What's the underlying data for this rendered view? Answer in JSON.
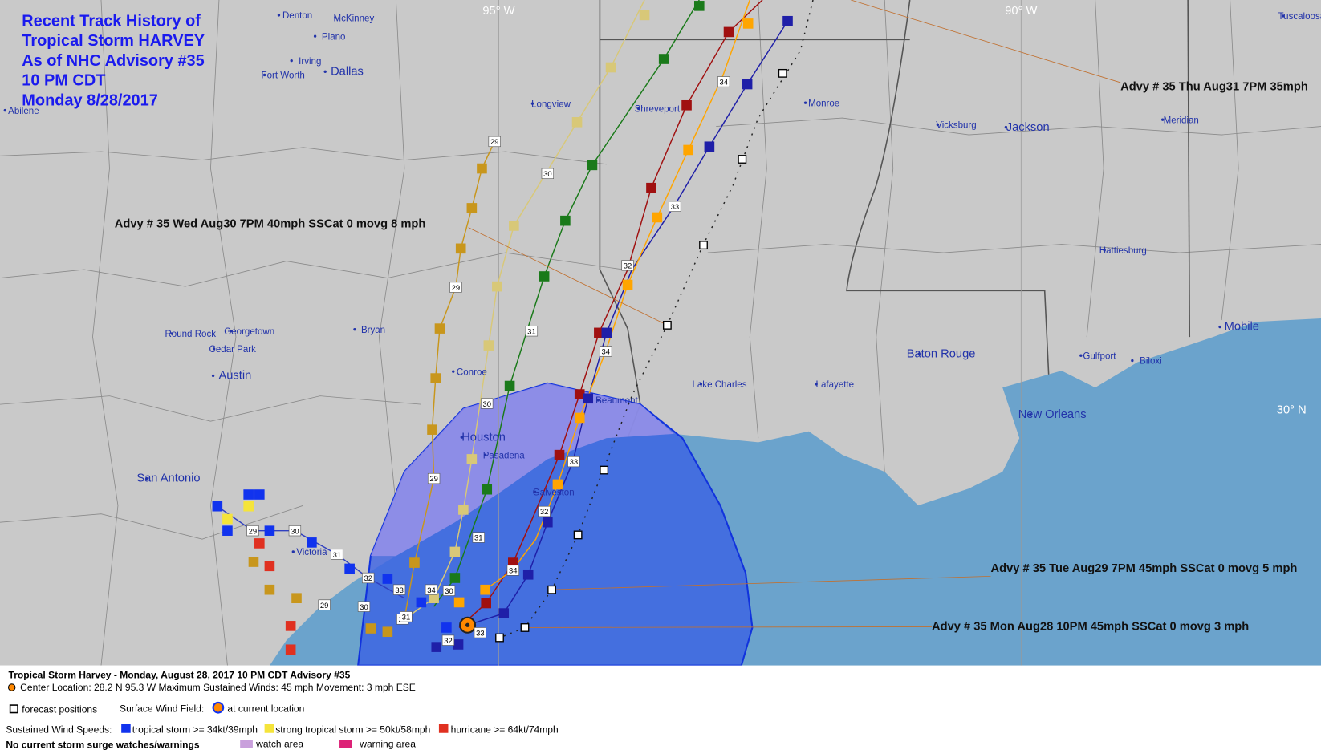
{
  "title": {
    "lines": [
      "Recent Track History of",
      "Tropical Storm HARVEY",
      "As of NHC Advisory #35",
      "10 PM CDT",
      "Monday 8/28/2017"
    ]
  },
  "grid_labels": [
    "95° W",
    "90° W",
    "30° N"
  ],
  "cities": [
    "Denton",
    "McKinney",
    "Plano",
    "Irving",
    "Fort Worth",
    "Dallas",
    "Abilene",
    "Longview",
    "Shreveport",
    "Monroe",
    "Vicksburg",
    "Jackson",
    "Meridian",
    "Tuscaloosa",
    "Bryan",
    "Round Rock",
    "Georgetown",
    "Cedar Park",
    "Austin",
    "Conroe",
    "Houston",
    "Pasadena",
    "Galveston",
    "San Antonio",
    "Victoria",
    "Beaumont",
    "Lake Charles",
    "Lafayette",
    "Baton Rouge",
    "Hattiesburg",
    "Gulfport",
    "Biloxi",
    "Mobile",
    "New Orleans"
  ],
  "advisories": [
    "Advy # 35 Thu Aug31 7PM  35mph",
    "Advy # 35 Wed Aug30 7PM  40mph SSCat 0 movg 8 mph",
    "Advy # 35 Tue Aug29 7PM  45mph SSCat 0 movg 5 mph",
    "Advy # 35 Mon Aug28 10PM  45mph SSCat 0 movg 3 mph"
  ],
  "track_labels": [
    "29",
    "29",
    "29",
    "29",
    "29",
    "29",
    "30",
    "30",
    "30",
    "30",
    "30",
    "31",
    "31",
    "31",
    "31",
    "32",
    "32",
    "32",
    "32",
    "33",
    "33",
    "33",
    "33",
    "34",
    "34",
    "34",
    "34"
  ],
  "legend": {
    "heading": "Tropical Storm Harvey  -  Monday, August 28, 2017  10 PM CDT   Advisory #35",
    "center": "Center Location: 28.2 N  95.3 W   Maximum Sustained Winds: 45 mph  Movement: 3 mph ESE",
    "forecast": "forecast positions",
    "wind_field": "Surface Wind Field:",
    "current": "at current location",
    "speeds_label": "Sustained Wind Speeds:",
    "ts": "tropical storm >= 34kt/39mph",
    "sts": "strong tropical storm >= 50kt/58mph",
    "hu": "hurricane >= 64kt/74mph",
    "surge": "No current storm surge watches/warnings",
    "watch": "watch area",
    "warning": "warning area"
  }
}
